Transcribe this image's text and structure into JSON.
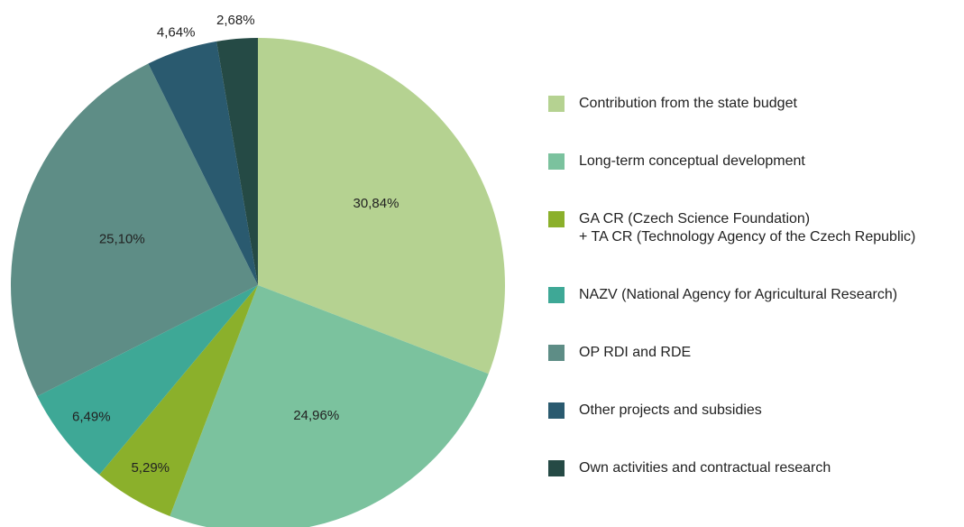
{
  "chart_data": {
    "type": "pie",
    "categories": [
      "Contribution from the state budget",
      "Long-term conceptual development",
      "GA CR (Czech Science Foundation)\n+ TA CR (Technology Agency of the Czech Republic)",
      "NAZV (National Agency for Agricultural Research)",
      "OP RDI and RDE",
      "Other projects and subsidies",
      "Own activities and contractual research"
    ],
    "values": [
      30.84,
      24.96,
      5.29,
      6.49,
      25.1,
      4.64,
      2.68
    ],
    "value_labels": [
      "30,84%",
      "24,96%",
      "5,29%",
      "6,49%",
      "25,10%",
      "4,64%",
      "2,68%"
    ],
    "colors": [
      "#b5d291",
      "#7bc29e",
      "#8bb02b",
      "#3ea896",
      "#5e8d86",
      "#2a5a6f",
      "#254a45"
    ],
    "legend": "right"
  }
}
